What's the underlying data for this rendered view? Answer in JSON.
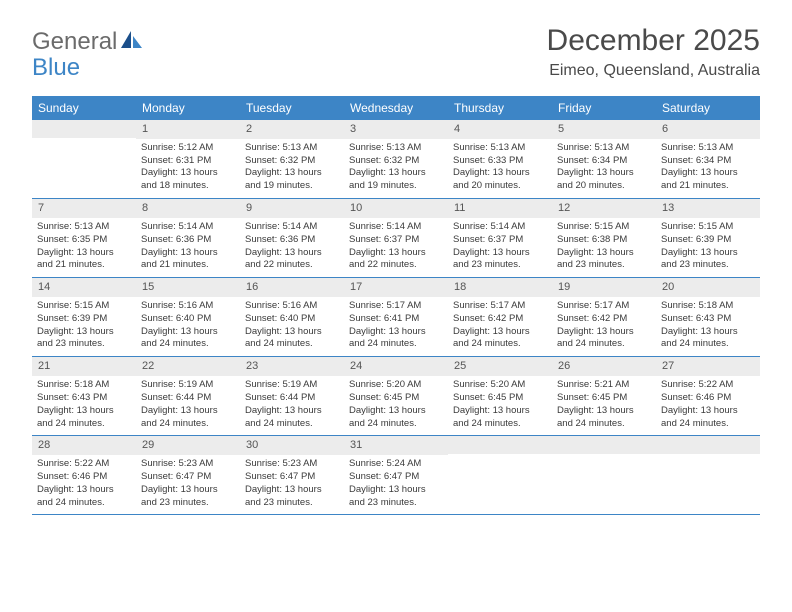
{
  "logo": {
    "general": "General",
    "blue": "Blue"
  },
  "title": "December 2025",
  "location": "Eimeo, Queensland, Australia",
  "weekdays": [
    "Sunday",
    "Monday",
    "Tuesday",
    "Wednesday",
    "Thursday",
    "Friday",
    "Saturday"
  ],
  "colors": {
    "header_bg": "#3d85c6",
    "daynumber_bg": "#ececec",
    "text": "#3a3a3a",
    "logo_gray": "#6b6b6b",
    "logo_blue": "#3d85c6"
  },
  "weeks": [
    [
      {
        "n": "",
        "sunrise": "",
        "sunset": "",
        "daylight": ""
      },
      {
        "n": "1",
        "sunrise": "Sunrise: 5:12 AM",
        "sunset": "Sunset: 6:31 PM",
        "daylight": "Daylight: 13 hours and 18 minutes."
      },
      {
        "n": "2",
        "sunrise": "Sunrise: 5:13 AM",
        "sunset": "Sunset: 6:32 PM",
        "daylight": "Daylight: 13 hours and 19 minutes."
      },
      {
        "n": "3",
        "sunrise": "Sunrise: 5:13 AM",
        "sunset": "Sunset: 6:32 PM",
        "daylight": "Daylight: 13 hours and 19 minutes."
      },
      {
        "n": "4",
        "sunrise": "Sunrise: 5:13 AM",
        "sunset": "Sunset: 6:33 PM",
        "daylight": "Daylight: 13 hours and 20 minutes."
      },
      {
        "n": "5",
        "sunrise": "Sunrise: 5:13 AM",
        "sunset": "Sunset: 6:34 PM",
        "daylight": "Daylight: 13 hours and 20 minutes."
      },
      {
        "n": "6",
        "sunrise": "Sunrise: 5:13 AM",
        "sunset": "Sunset: 6:34 PM",
        "daylight": "Daylight: 13 hours and 21 minutes."
      }
    ],
    [
      {
        "n": "7",
        "sunrise": "Sunrise: 5:13 AM",
        "sunset": "Sunset: 6:35 PM",
        "daylight": "Daylight: 13 hours and 21 minutes."
      },
      {
        "n": "8",
        "sunrise": "Sunrise: 5:14 AM",
        "sunset": "Sunset: 6:36 PM",
        "daylight": "Daylight: 13 hours and 21 minutes."
      },
      {
        "n": "9",
        "sunrise": "Sunrise: 5:14 AM",
        "sunset": "Sunset: 6:36 PM",
        "daylight": "Daylight: 13 hours and 22 minutes."
      },
      {
        "n": "10",
        "sunrise": "Sunrise: 5:14 AM",
        "sunset": "Sunset: 6:37 PM",
        "daylight": "Daylight: 13 hours and 22 minutes."
      },
      {
        "n": "11",
        "sunrise": "Sunrise: 5:14 AM",
        "sunset": "Sunset: 6:37 PM",
        "daylight": "Daylight: 13 hours and 23 minutes."
      },
      {
        "n": "12",
        "sunrise": "Sunrise: 5:15 AM",
        "sunset": "Sunset: 6:38 PM",
        "daylight": "Daylight: 13 hours and 23 minutes."
      },
      {
        "n": "13",
        "sunrise": "Sunrise: 5:15 AM",
        "sunset": "Sunset: 6:39 PM",
        "daylight": "Daylight: 13 hours and 23 minutes."
      }
    ],
    [
      {
        "n": "14",
        "sunrise": "Sunrise: 5:15 AM",
        "sunset": "Sunset: 6:39 PM",
        "daylight": "Daylight: 13 hours and 23 minutes."
      },
      {
        "n": "15",
        "sunrise": "Sunrise: 5:16 AM",
        "sunset": "Sunset: 6:40 PM",
        "daylight": "Daylight: 13 hours and 24 minutes."
      },
      {
        "n": "16",
        "sunrise": "Sunrise: 5:16 AM",
        "sunset": "Sunset: 6:40 PM",
        "daylight": "Daylight: 13 hours and 24 minutes."
      },
      {
        "n": "17",
        "sunrise": "Sunrise: 5:17 AM",
        "sunset": "Sunset: 6:41 PM",
        "daylight": "Daylight: 13 hours and 24 minutes."
      },
      {
        "n": "18",
        "sunrise": "Sunrise: 5:17 AM",
        "sunset": "Sunset: 6:42 PM",
        "daylight": "Daylight: 13 hours and 24 minutes."
      },
      {
        "n": "19",
        "sunrise": "Sunrise: 5:17 AM",
        "sunset": "Sunset: 6:42 PM",
        "daylight": "Daylight: 13 hours and 24 minutes."
      },
      {
        "n": "20",
        "sunrise": "Sunrise: 5:18 AM",
        "sunset": "Sunset: 6:43 PM",
        "daylight": "Daylight: 13 hours and 24 minutes."
      }
    ],
    [
      {
        "n": "21",
        "sunrise": "Sunrise: 5:18 AM",
        "sunset": "Sunset: 6:43 PM",
        "daylight": "Daylight: 13 hours and 24 minutes."
      },
      {
        "n": "22",
        "sunrise": "Sunrise: 5:19 AM",
        "sunset": "Sunset: 6:44 PM",
        "daylight": "Daylight: 13 hours and 24 minutes."
      },
      {
        "n": "23",
        "sunrise": "Sunrise: 5:19 AM",
        "sunset": "Sunset: 6:44 PM",
        "daylight": "Daylight: 13 hours and 24 minutes."
      },
      {
        "n": "24",
        "sunrise": "Sunrise: 5:20 AM",
        "sunset": "Sunset: 6:45 PM",
        "daylight": "Daylight: 13 hours and 24 minutes."
      },
      {
        "n": "25",
        "sunrise": "Sunrise: 5:20 AM",
        "sunset": "Sunset: 6:45 PM",
        "daylight": "Daylight: 13 hours and 24 minutes."
      },
      {
        "n": "26",
        "sunrise": "Sunrise: 5:21 AM",
        "sunset": "Sunset: 6:45 PM",
        "daylight": "Daylight: 13 hours and 24 minutes."
      },
      {
        "n": "27",
        "sunrise": "Sunrise: 5:22 AM",
        "sunset": "Sunset: 6:46 PM",
        "daylight": "Daylight: 13 hours and 24 minutes."
      }
    ],
    [
      {
        "n": "28",
        "sunrise": "Sunrise: 5:22 AM",
        "sunset": "Sunset: 6:46 PM",
        "daylight": "Daylight: 13 hours and 24 minutes."
      },
      {
        "n": "29",
        "sunrise": "Sunrise: 5:23 AM",
        "sunset": "Sunset: 6:47 PM",
        "daylight": "Daylight: 13 hours and 23 minutes."
      },
      {
        "n": "30",
        "sunrise": "Sunrise: 5:23 AM",
        "sunset": "Sunset: 6:47 PM",
        "daylight": "Daylight: 13 hours and 23 minutes."
      },
      {
        "n": "31",
        "sunrise": "Sunrise: 5:24 AM",
        "sunset": "Sunset: 6:47 PM",
        "daylight": "Daylight: 13 hours and 23 minutes."
      },
      {
        "n": "",
        "sunrise": "",
        "sunset": "",
        "daylight": ""
      },
      {
        "n": "",
        "sunrise": "",
        "sunset": "",
        "daylight": ""
      },
      {
        "n": "",
        "sunrise": "",
        "sunset": "",
        "daylight": ""
      }
    ]
  ]
}
